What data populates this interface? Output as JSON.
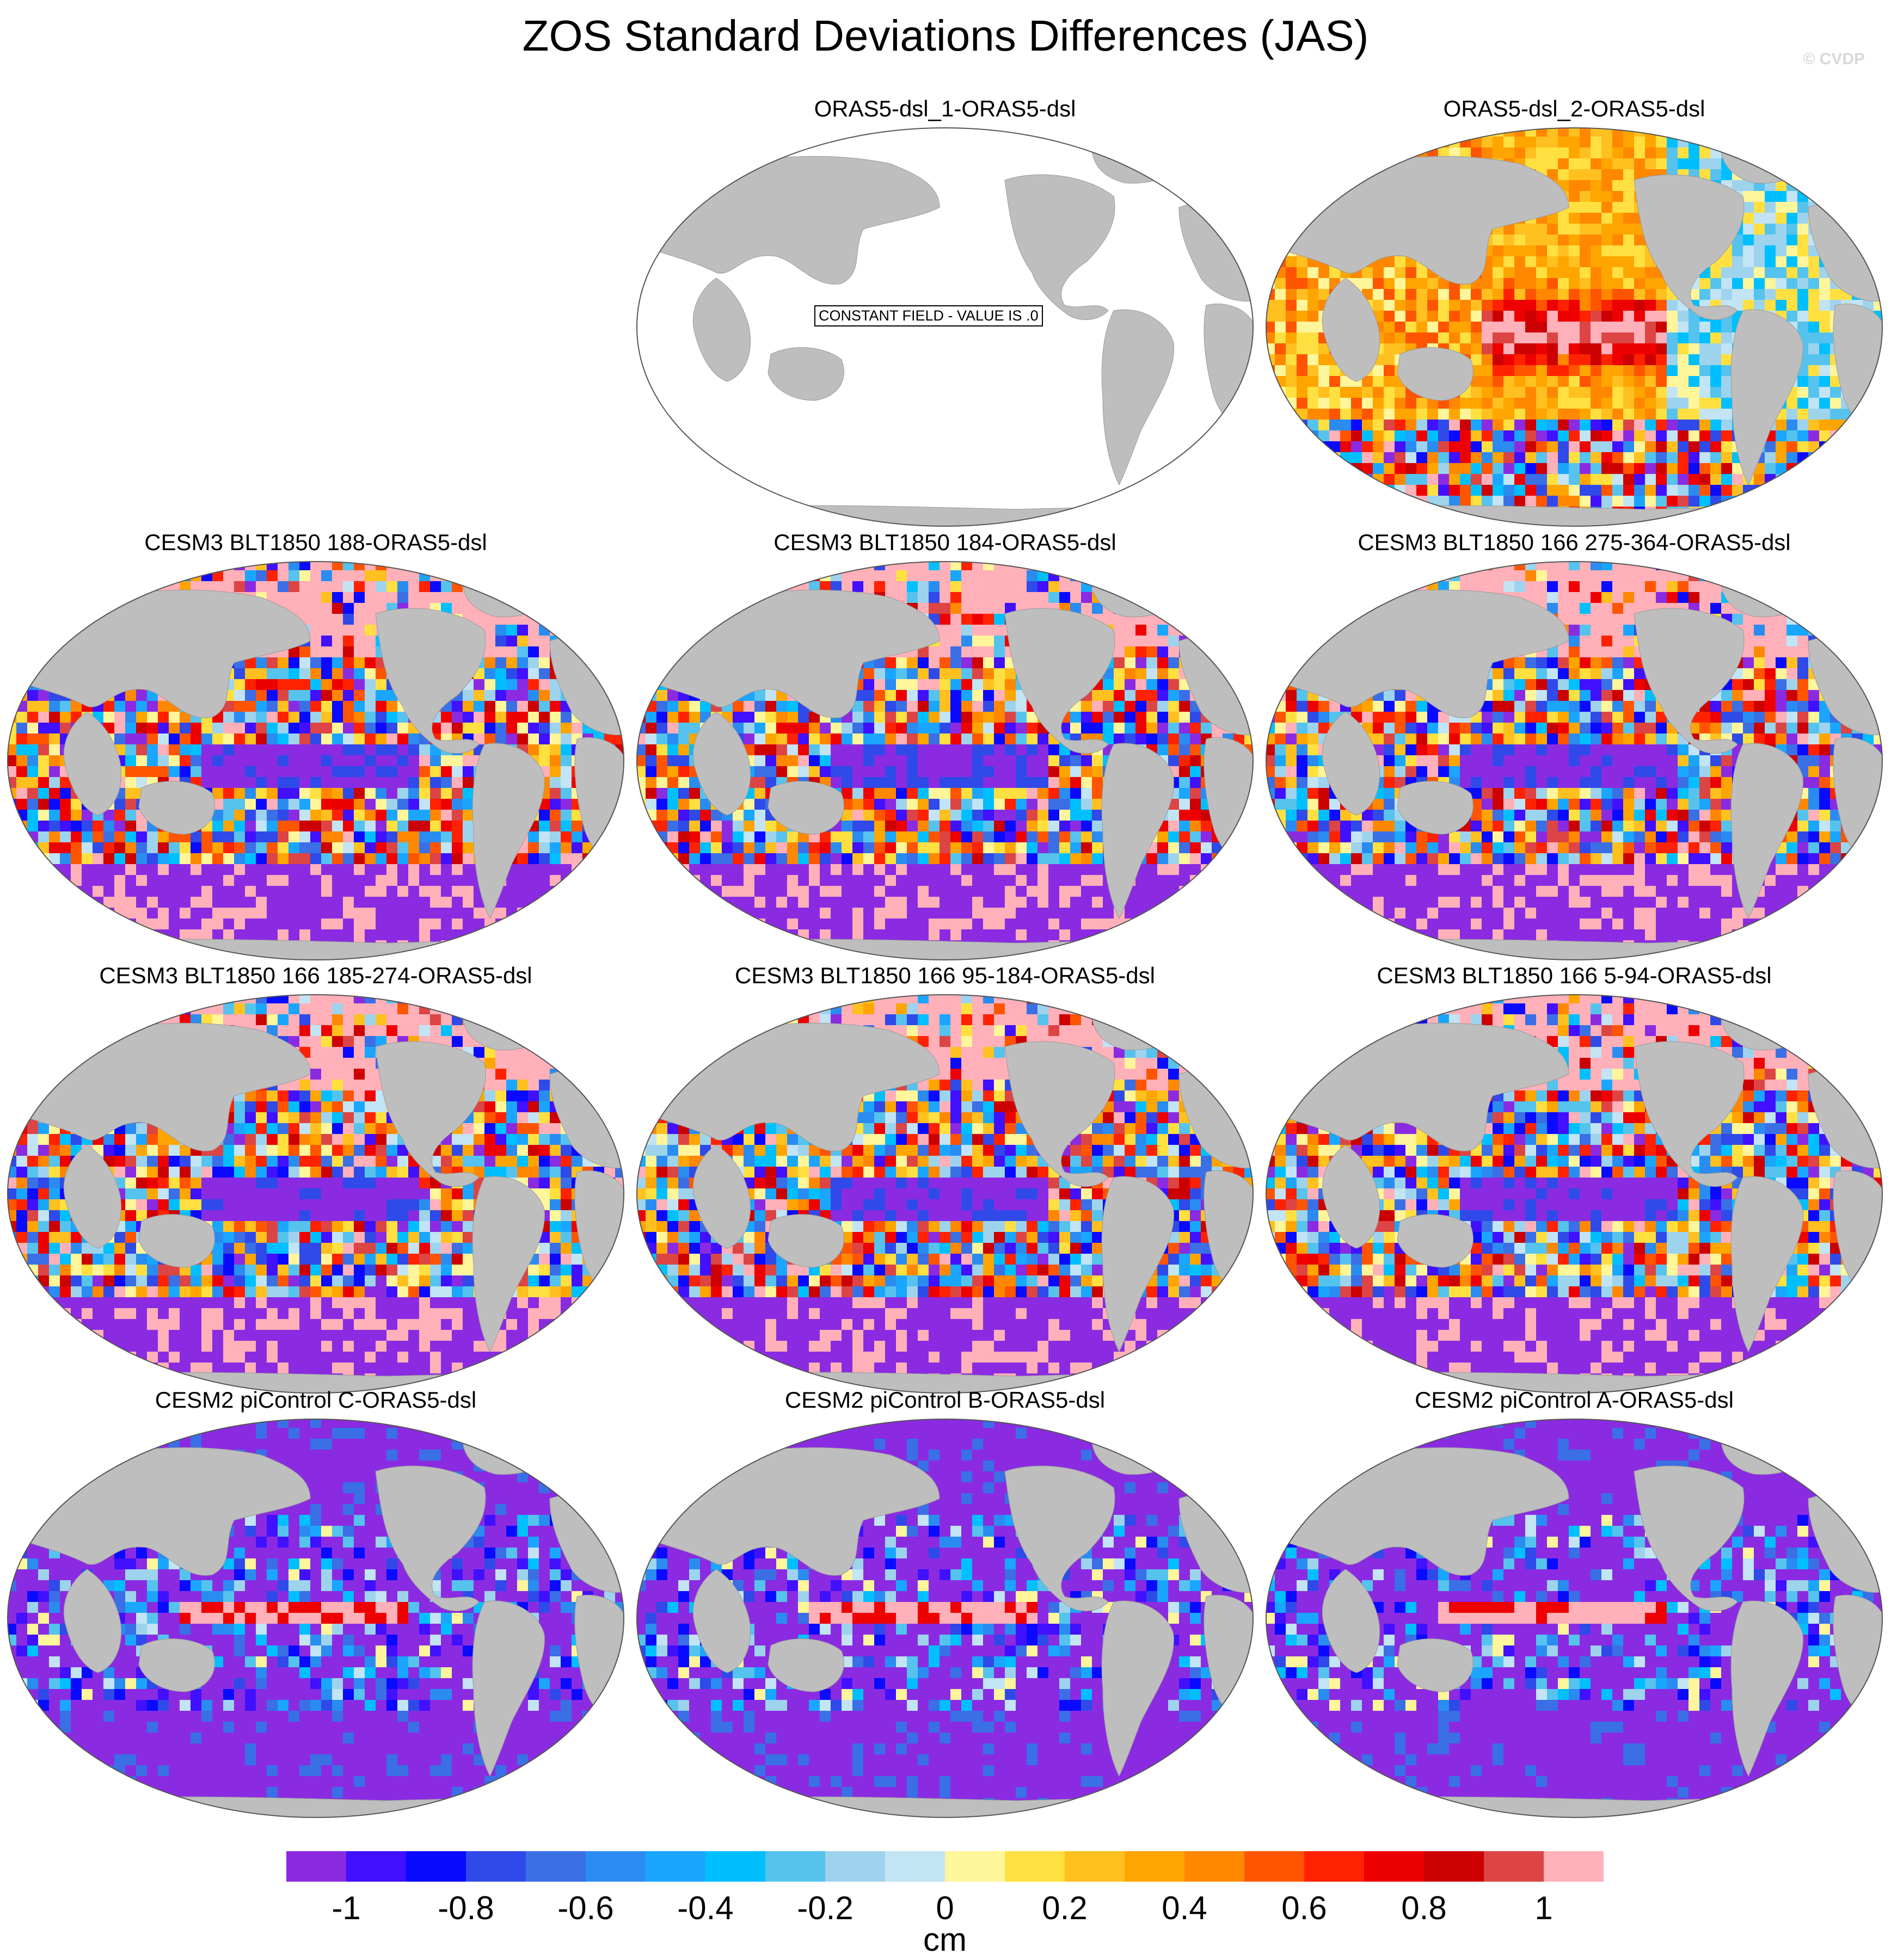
{
  "title": "ZOS Standard Deviations Differences (JAS)",
  "watermark": "© CVDP",
  "constant_field_label": "CONSTANT FIELD - VALUE IS .0",
  "panels": [
    {
      "title": "ORAS5-dsl_1-ORAS5-dsl",
      "pattern": "constant"
    },
    {
      "title": "ORAS5-dsl_2-ORAS5-dsl",
      "pattern": "noisy"
    },
    {
      "title": "CESM3 BLT1850 188-ORAS5-dsl",
      "pattern": "cesm3"
    },
    {
      "title": "CESM3 BLT1850 184-ORAS5-dsl",
      "pattern": "cesm3"
    },
    {
      "title": "CESM3 BLT1850 166 275-364-ORAS5-dsl",
      "pattern": "cesm3"
    },
    {
      "title": "CESM3 BLT1850 166 185-274-ORAS5-dsl",
      "pattern": "cesm3"
    },
    {
      "title": "CESM3 BLT1850 166 95-184-ORAS5-dsl",
      "pattern": "cesm3"
    },
    {
      "title": "CESM3 BLT1850 166 5-94-ORAS5-dsl",
      "pattern": "cesm3"
    },
    {
      "title": "CESM2 piControl C-ORAS5-dsl",
      "pattern": "cesm2"
    },
    {
      "title": "CESM2 piControl B-ORAS5-dsl",
      "pattern": "cesm2"
    },
    {
      "title": "CESM2 piControl A-ORAS5-dsl",
      "pattern": "cesm2"
    }
  ],
  "colorbar": {
    "units": "cm",
    "colors": [
      "#8a2be2",
      "#4010ff",
      "#0a0aff",
      "#2f4ae8",
      "#3a6fe6",
      "#2a8cf0",
      "#1aa6ff",
      "#00bfff",
      "#55c3ee",
      "#9ed3ee",
      "#c2e4f4",
      "#fff59a",
      "#ffe040",
      "#ffc020",
      "#ffa500",
      "#ff8800",
      "#ff5500",
      "#ff2200",
      "#ee0000",
      "#cc0000",
      "#dd4444",
      "#ffb0b8"
    ],
    "tick_labels": [
      "-1",
      "-0.8",
      "-0.6",
      "-0.4",
      "-0.2",
      "0",
      "0.2",
      "0.4",
      "0.6",
      "0.8",
      "1"
    ]
  }
}
